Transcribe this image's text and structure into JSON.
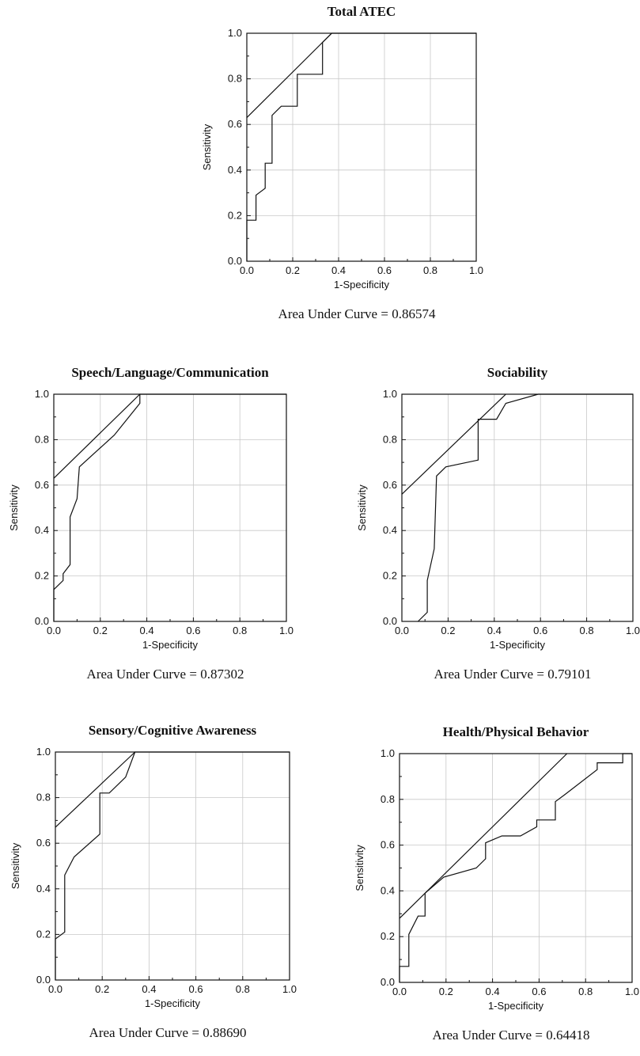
{
  "chart_data": [
    {
      "type": "line",
      "title": "Total ATEC",
      "xlabel": "1-Specificity",
      "ylabel": "Sensitivity",
      "xlim": [
        0,
        1
      ],
      "ylim": [
        0,
        1
      ],
      "xticks": [
        "0.0",
        "0.2",
        "0.4",
        "0.6",
        "0.8",
        "1.0"
      ],
      "yticks": [
        "0.0",
        "0.2",
        "0.4",
        "0.6",
        "0.8",
        "1.0"
      ],
      "grid": true,
      "auc_label": "Area Under Curve = 0.86574",
      "reference_line": [
        [
          0,
          0.63
        ],
        [
          0.37,
          1.0
        ]
      ],
      "roc": [
        [
          0,
          0
        ],
        [
          0,
          0.18
        ],
        [
          0.04,
          0.18
        ],
        [
          0.04,
          0.29
        ],
        [
          0.08,
          0.32
        ],
        [
          0.08,
          0.43
        ],
        [
          0.11,
          0.43
        ],
        [
          0.11,
          0.64
        ],
        [
          0.15,
          0.68
        ],
        [
          0.22,
          0.68
        ],
        [
          0.22,
          0.82
        ],
        [
          0.33,
          0.82
        ],
        [
          0.33,
          0.96
        ],
        [
          0.37,
          1.0
        ],
        [
          1.0,
          1.0
        ]
      ]
    },
    {
      "type": "line",
      "title": "Speech/Language/Communication",
      "xlabel": "1-Specificity",
      "ylabel": "Sensitivity",
      "xlim": [
        0,
        1
      ],
      "ylim": [
        0,
        1
      ],
      "xticks": [
        "0.0",
        "0.2",
        "0.4",
        "0.6",
        "0.8",
        "1.0"
      ],
      "yticks": [
        "0.0",
        "0.2",
        "0.4",
        "0.6",
        "0.8",
        "1.0"
      ],
      "grid": true,
      "auc_label": "Area Under Curve = 0.87302",
      "reference_line": [
        [
          0,
          0.63
        ],
        [
          0.37,
          1.0
        ]
      ],
      "roc": [
        [
          0,
          0
        ],
        [
          0,
          0.14
        ],
        [
          0.04,
          0.18
        ],
        [
          0.04,
          0.21
        ],
        [
          0.07,
          0.25
        ],
        [
          0.07,
          0.46
        ],
        [
          0.1,
          0.54
        ],
        [
          0.11,
          0.68
        ],
        [
          0.26,
          0.82
        ],
        [
          0.37,
          0.96
        ],
        [
          0.37,
          1.0
        ],
        [
          1.0,
          1.0
        ]
      ]
    },
    {
      "type": "line",
      "title": "Sociability",
      "xlabel": "1-Specificity",
      "ylabel": "Sensitivity",
      "xlim": [
        0,
        1
      ],
      "ylim": [
        0,
        1
      ],
      "xticks": [
        "0.0",
        "0.2",
        "0.4",
        "0.6",
        "0.8",
        "1.0"
      ],
      "yticks": [
        "0.0",
        "0.2",
        "0.4",
        "0.6",
        "0.8",
        "1.0"
      ],
      "grid": true,
      "auc_label": "Area Under Curve = 0.79101",
      "reference_line": [
        [
          0,
          0.56
        ],
        [
          0.45,
          1.0
        ]
      ],
      "roc": [
        [
          0.07,
          0
        ],
        [
          0.11,
          0.04
        ],
        [
          0.11,
          0.18
        ],
        [
          0.14,
          0.32
        ],
        [
          0.15,
          0.64
        ],
        [
          0.19,
          0.68
        ],
        [
          0.33,
          0.71
        ],
        [
          0.33,
          0.89
        ],
        [
          0.41,
          0.89
        ],
        [
          0.45,
          0.96
        ],
        [
          0.59,
          1.0
        ],
        [
          1.0,
          1.0
        ]
      ]
    },
    {
      "type": "line",
      "title": "Sensory/Cognitive Awareness",
      "xlabel": "1-Specificity",
      "ylabel": "Sensitivity",
      "xlim": [
        0,
        1
      ],
      "ylim": [
        0,
        1
      ],
      "xticks": [
        "0.0",
        "0.2",
        "0.4",
        "0.6",
        "0.8",
        "1.0"
      ],
      "yticks": [
        "0.0",
        "0.2",
        "0.4",
        "0.6",
        "0.8",
        "1.0"
      ],
      "grid": true,
      "auc_label": "Area Under Curve = 0.88690",
      "reference_line": [
        [
          0,
          0.67
        ],
        [
          0.34,
          1.0
        ]
      ],
      "roc": [
        [
          0,
          0
        ],
        [
          0,
          0.18
        ],
        [
          0.04,
          0.21
        ],
        [
          0.04,
          0.46
        ],
        [
          0.08,
          0.54
        ],
        [
          0.19,
          0.64
        ],
        [
          0.19,
          0.82
        ],
        [
          0.23,
          0.82
        ],
        [
          0.3,
          0.89
        ],
        [
          0.34,
          1.0
        ],
        [
          1.0,
          1.0
        ]
      ]
    },
    {
      "type": "line",
      "title": "Health/Physical Behavior",
      "xlabel": "1-Specificity",
      "ylabel": "Sensitivity",
      "xlim": [
        0,
        1
      ],
      "ylim": [
        0,
        1
      ],
      "xticks": [
        "0.0",
        "0.2",
        "0.4",
        "0.6",
        "0.8",
        "1.0"
      ],
      "yticks": [
        "0.0",
        "0.2",
        "0.4",
        "0.6",
        "0.8",
        "1.0"
      ],
      "grid": true,
      "auc_label": "Area Under Curve = 0.64418",
      "reference_line": [
        [
          0,
          0.28
        ],
        [
          0.72,
          1.0
        ]
      ],
      "roc": [
        [
          0,
          0
        ],
        [
          0,
          0.07
        ],
        [
          0.04,
          0.07
        ],
        [
          0.04,
          0.21
        ],
        [
          0.08,
          0.29
        ],
        [
          0.11,
          0.29
        ],
        [
          0.11,
          0.39
        ],
        [
          0.19,
          0.46
        ],
        [
          0.33,
          0.5
        ],
        [
          0.37,
          0.54
        ],
        [
          0.37,
          0.61
        ],
        [
          0.44,
          0.64
        ],
        [
          0.52,
          0.64
        ],
        [
          0.59,
          0.68
        ],
        [
          0.59,
          0.71
        ],
        [
          0.67,
          0.71
        ],
        [
          0.67,
          0.79
        ],
        [
          0.71,
          0.82
        ],
        [
          0.85,
          0.93
        ],
        [
          0.85,
          0.96
        ],
        [
          0.96,
          0.96
        ],
        [
          0.96,
          1.0
        ],
        [
          1.0,
          1.0
        ]
      ]
    }
  ]
}
